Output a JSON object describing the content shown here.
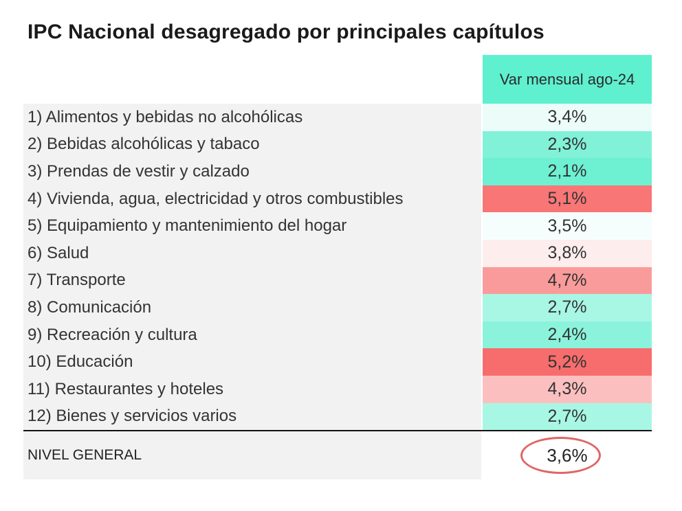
{
  "title": "IPC Nacional desagregado por principales capítulos",
  "column_header": "Var mensual ago-24",
  "total": {
    "label": "NIVEL GENERAL",
    "value": "3,6%"
  },
  "colors": {
    "header": "#5ff0cf",
    "low": "#6ef0d2",
    "neutral": "#ffffff",
    "high": "#f76d6d"
  },
  "chart_data": {
    "type": "table",
    "title": "IPC Nacional desagregado por principales capítulos",
    "columns": [
      "Var mensual ago-24"
    ],
    "rows": [
      {
        "label": "1) Alimentos y bebidas no alcohólicas",
        "value": 3.4,
        "display": "3,4%"
      },
      {
        "label": "2) Bebidas alcohólicas y tabaco",
        "value": 2.3,
        "display": "2,3%"
      },
      {
        "label": "3) Prendas de vestir y calzado",
        "value": 2.1,
        "display": "2,1%"
      },
      {
        "label": "4) Vivienda, agua, electricidad y otros combustibles",
        "value": 5.1,
        "display": "5,1%"
      },
      {
        "label": "5) Equipamiento y mantenimiento del hogar",
        "value": 3.5,
        "display": "3,5%"
      },
      {
        "label": "6) Salud",
        "value": 3.8,
        "display": "3,8%"
      },
      {
        "label": "7) Transporte",
        "value": 4.7,
        "display": "4,7%"
      },
      {
        "label": "8) Comunicación",
        "value": 2.7,
        "display": "2,7%"
      },
      {
        "label": "9) Recreación y cultura",
        "value": 2.4,
        "display": "2,4%"
      },
      {
        "label": "10) Educación",
        "value": 5.2,
        "display": "5,2%"
      },
      {
        "label": "11) Restaurantes y hoteles",
        "value": 4.3,
        "display": "4,3%"
      },
      {
        "label": "12) Bienes y servicios varios",
        "value": 2.7,
        "display": "2,7%"
      }
    ],
    "total": {
      "label": "NIVEL GENERAL",
      "value": 3.6,
      "display": "3,6%"
    }
  }
}
